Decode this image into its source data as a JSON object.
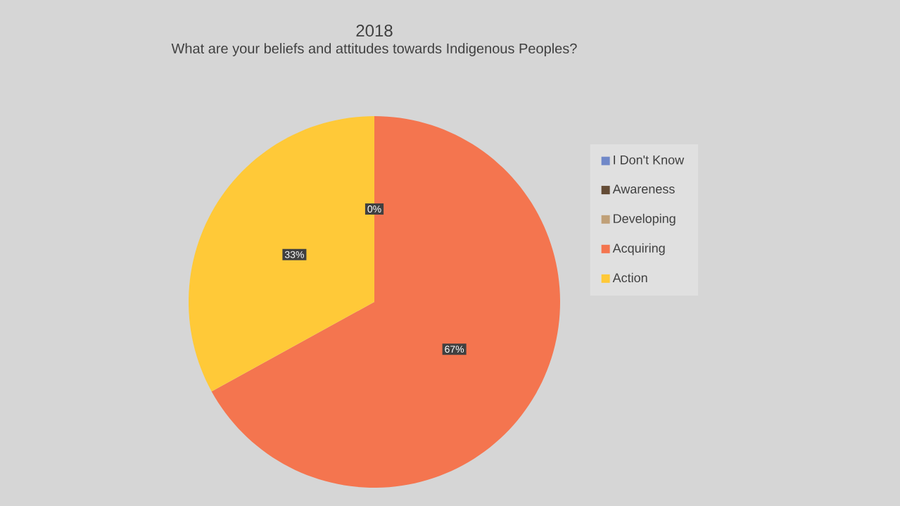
{
  "chart_data": {
    "type": "pie",
    "title": "2018",
    "subtitle": "What are your beliefs and attitudes towards Indigenous Peoples?",
    "categories": [
      "I Don't Know",
      "Awareness",
      "Developing",
      "Acquiring",
      "Action"
    ],
    "values": [
      0,
      0,
      0,
      67,
      33
    ],
    "colors": [
      "#7088c8",
      "#644c36",
      "#c0a078",
      "#f4754f",
      "#ffc938"
    ],
    "value_labels": [
      null,
      null,
      "0%",
      "67%",
      "33%"
    ],
    "legend": "right"
  }
}
